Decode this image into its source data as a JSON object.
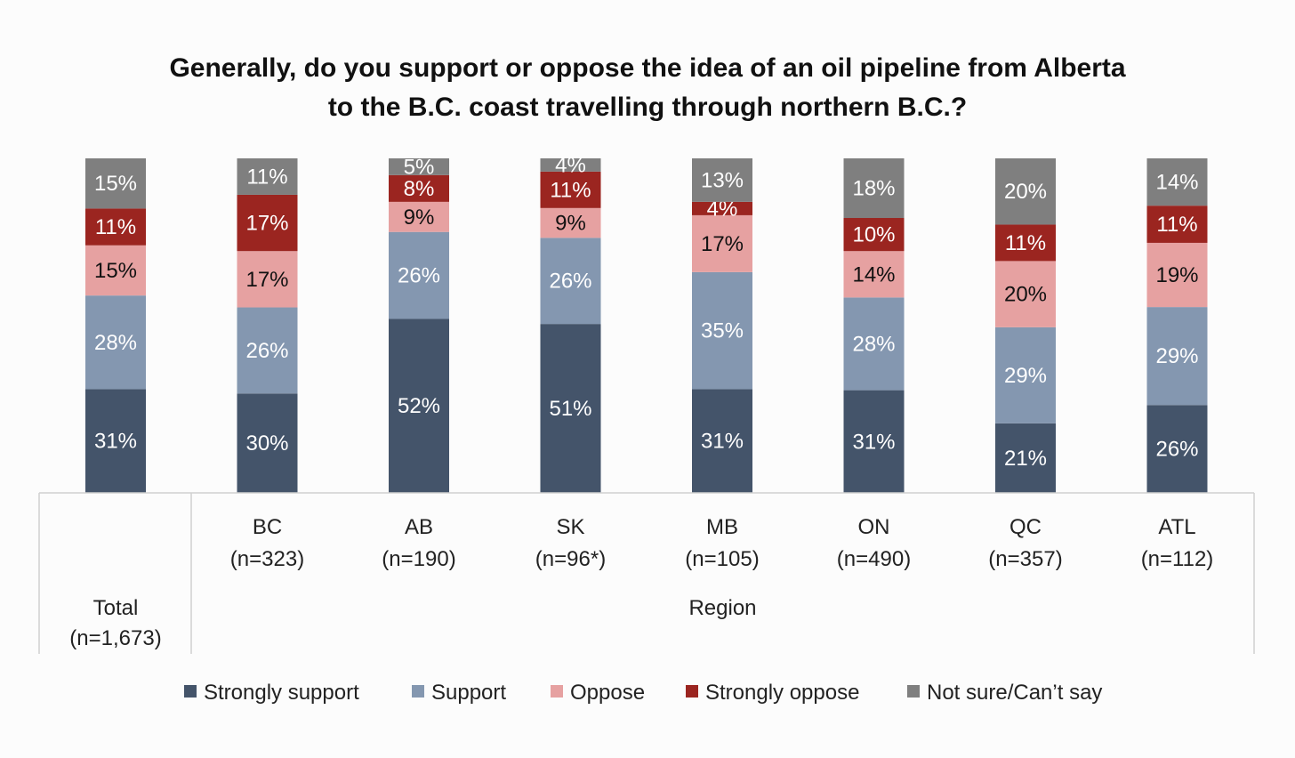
{
  "chart_data": {
    "type": "bar",
    "stacked": true,
    "title": [
      "Generally, do you support or oppose the idea of an oil pipeline from Alberta",
      "to the B.C. coast travelling through northern B.C.?"
    ],
    "categories": [
      {
        "label": "Total",
        "n": "(n=1,673)"
      },
      {
        "label": "BC",
        "n": "(n=323)"
      },
      {
        "label": "AB",
        "n": "(n=190)"
      },
      {
        "label": "SK",
        "n": "(n=96*)"
      },
      {
        "label": "MB",
        "n": "(n=105)"
      },
      {
        "label": "ON",
        "n": "(n=490)"
      },
      {
        "label": "QC",
        "n": "(n=357)"
      },
      {
        "label": "ATL",
        "n": "(n=112)"
      }
    ],
    "group_label": "Region",
    "series": [
      {
        "name": "Strongly support",
        "color": "#44546a",
        "text_color": "#ffffff",
        "values": [
          31,
          30,
          52,
          51,
          31,
          31,
          21,
          26
        ]
      },
      {
        "name": "Support",
        "color": "#8497b0",
        "text_color": "#ffffff",
        "values": [
          28,
          26,
          26,
          26,
          35,
          28,
          29,
          29
        ]
      },
      {
        "name": "Oppose",
        "color": "#e6a1a1",
        "text_color": "#111111",
        "values": [
          15,
          17,
          9,
          9,
          17,
          14,
          20,
          19
        ]
      },
      {
        "name": "Strongly oppose",
        "color": "#9b2520",
        "text_color": "#ffffff",
        "values": [
          11,
          17,
          8,
          11,
          4,
          10,
          11,
          11
        ]
      },
      {
        "name": "Not sure/Can’t say",
        "color": "#7f7f7f",
        "text_color": "#ffffff",
        "values": [
          15,
          11,
          5,
          4,
          13,
          18,
          20,
          14
        ]
      }
    ],
    "value_suffix": "%",
    "ylim": [
      0,
      100
    ],
    "legend_position": "bottom"
  }
}
